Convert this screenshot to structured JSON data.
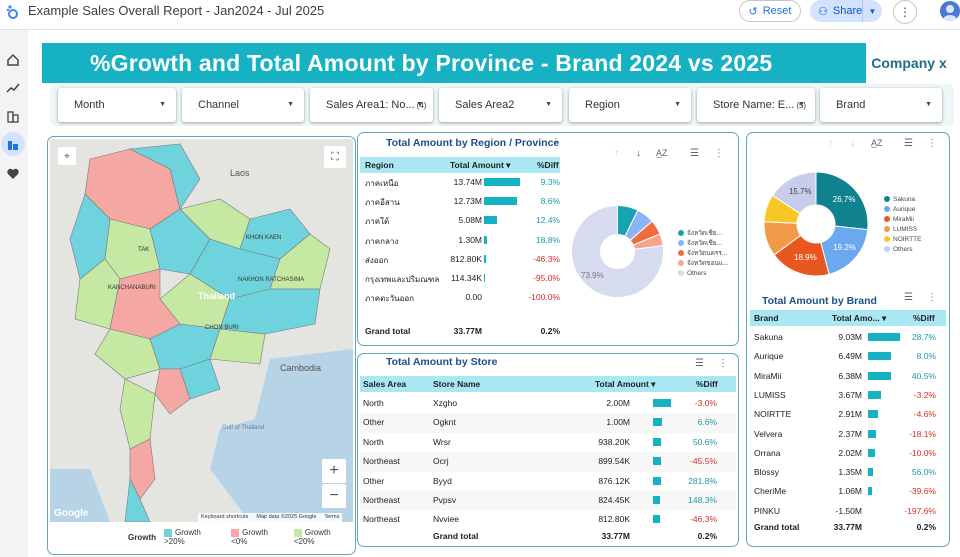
{
  "app": {
    "title": "Example Sales Overall Report - Jan2024 - Jul 2025",
    "reset_label": "Reset",
    "share_label": "Share"
  },
  "banner": {
    "title": "%Growth and Total Amount by Province - Brand 2024 vs 2025",
    "company": "Company x"
  },
  "filters": [
    {
      "label": "Month"
    },
    {
      "label": "Channel"
    },
    {
      "label": "Sales Area1: No...",
      "count": "(4)"
    },
    {
      "label": "Sales Area2"
    },
    {
      "label": "Region"
    },
    {
      "label": "Store Name: E...",
      "count": "(5)"
    },
    {
      "label": "Brand"
    }
  ],
  "map": {
    "labels": [
      "Laos",
      "Thailand",
      "Cambodia",
      "KANCHANABURI",
      "CHON BURI",
      "TAK",
      "KHON KAEN",
      "NAKHON RATCHASIMA",
      "Gulf of Thailand"
    ],
    "attribution": [
      "Keyboard shortcuts",
      "Map data ©2025 Google",
      "Terms"
    ],
    "google": "Google",
    "legend": {
      "title": "Growth",
      "items": [
        {
          "label": "Growth >20%",
          "color": "#6fd3dd"
        },
        {
          "label": "Growth <0%",
          "color": "#f4a7a3"
        },
        {
          "label": "Growth <20%",
          "color": "#c5e8a3"
        }
      ]
    },
    "zoom_in": "+",
    "zoom_out": "−"
  },
  "region_table": {
    "title": "Total Amount by Region / Province",
    "headers": [
      "Region",
      "Total Amount ▾",
      "%Diff"
    ],
    "rows": [
      {
        "name": "ภาคเหนือ",
        "amount": "13.74M",
        "bar": 1.0,
        "diff": "9.3%",
        "neg": false
      },
      {
        "name": "ภาคอีสาน",
        "amount": "12.73M",
        "bar": 0.93,
        "diff": "8.6%",
        "neg": false
      },
      {
        "name": "ภาคใต้",
        "amount": "5.08M",
        "bar": 0.37,
        "diff": "12.4%",
        "neg": false
      },
      {
        "name": "ภาคกลาง",
        "amount": "1.30M",
        "bar": 0.095,
        "diff": "18.8%",
        "neg": false
      },
      {
        "name": "ส่งออก",
        "amount": "812.80K",
        "bar": 0.06,
        "diff": "-46.3%",
        "neg": true
      },
      {
        "name": "กรุงเทพและปริมณฑล",
        "amount": "114.34K",
        "bar": 0.01,
        "diff": "-95.0%",
        "neg": true
      },
      {
        "name": "ภาคตะวันออก",
        "amount": "0.00",
        "bar": 0.0,
        "diff": "-100.0%",
        "neg": true
      }
    ],
    "total": {
      "label": "Grand total",
      "amount": "33.77M",
      "diff": "0.2%"
    }
  },
  "region_pie": {
    "center_label": "73.9%",
    "slices": [
      {
        "label": "จังหวัดเชีย...",
        "value": 7.0,
        "color": "#16a2b0"
      },
      {
        "label": "จังหวัดเชีย...",
        "value": 6.0,
        "color": "#8ab4f8"
      },
      {
        "label": "จังหวัดนครร...",
        "value": 5.0,
        "color": "#f26b3a"
      },
      {
        "label": "จังหวัดขอนแ...",
        "value": 4.0,
        "color": "#f4a58a"
      },
      {
        "label": "Others",
        "value": 73.9,
        "color": "#d6dbf0"
      }
    ]
  },
  "brand_pie": {
    "slices": [
      {
        "label": "Sakuna",
        "value": 26.7,
        "color": "#10828f",
        "show": "26.7%"
      },
      {
        "label": "Aurique",
        "value": 19.2,
        "color": "#6aa8f0",
        "show": "19.2%"
      },
      {
        "label": "MiraMii",
        "value": 18.9,
        "color": "#e8571f",
        "show": "18.9%"
      },
      {
        "label": "LUMISS",
        "value": 10.8,
        "color": "#f29a4a",
        "show": ""
      },
      {
        "label": "NOIRTTE",
        "value": 8.6,
        "color": "#f7c726",
        "show": ""
      },
      {
        "label": "Others",
        "value": 15.7,
        "color": "#c7cdeb",
        "show": "15.7%"
      }
    ]
  },
  "brand_table": {
    "title": "Total Amount by Brand",
    "headers": [
      "Brand",
      "Total Amo... ▾",
      "%Diff"
    ],
    "rows": [
      {
        "name": "Sakuna",
        "amount": "9.03M",
        "bar": 1.0,
        "diff": "28.7%",
        "neg": false
      },
      {
        "name": "Aurique",
        "amount": "6.49M",
        "bar": 0.72,
        "diff": "8.0%",
        "neg": false
      },
      {
        "name": "MiraMii",
        "amount": "6.38M",
        "bar": 0.71,
        "diff": "40.5%",
        "neg": false
      },
      {
        "name": "LUMISS",
        "amount": "3.67M",
        "bar": 0.41,
        "diff": "-3.2%",
        "neg": true
      },
      {
        "name": "NOIRTTE",
        "amount": "2.91M",
        "bar": 0.32,
        "diff": "-4.6%",
        "neg": true
      },
      {
        "name": "Velvera",
        "amount": "2.37M",
        "bar": 0.26,
        "diff": "-18.1%",
        "neg": true
      },
      {
        "name": "Orrana",
        "amount": "2.02M",
        "bar": 0.22,
        "diff": "-10.0%",
        "neg": true
      },
      {
        "name": "Blossy",
        "amount": "1.35M",
        "bar": 0.15,
        "diff": "56.0%",
        "neg": false
      },
      {
        "name": "CheriMe",
        "amount": "1.06M",
        "bar": 0.12,
        "diff": "-39.6%",
        "neg": true
      },
      {
        "name": "PINKU",
        "amount": "-1.50M",
        "bar": 0.0,
        "diff": "-197.6%",
        "neg": true
      }
    ],
    "total": {
      "label": "Grand total",
      "amount": "33.77M",
      "diff": "0.2%"
    }
  },
  "store_table": {
    "title": "Total Amount by Store",
    "headers": [
      "Sales Area",
      "Store Name",
      "Total Amount ▾",
      "%Diff"
    ],
    "rows": [
      {
        "area": "North",
        "store": "Xzgho",
        "amount": "2.00M",
        "bar": 1.0,
        "diff": "-3.0%",
        "neg": true
      },
      {
        "area": "Other",
        "store": "Ogknt",
        "amount": "1.00M",
        "bar": 0.5,
        "diff": "6.6%",
        "neg": false
      },
      {
        "area": "North",
        "store": "Wrsr",
        "amount": "938.20K",
        "bar": 0.47,
        "diff": "50.6%",
        "neg": false
      },
      {
        "area": "Northeast",
        "store": "Ocrj",
        "amount": "899.54K",
        "bar": 0.45,
        "diff": "-45.5%",
        "neg": true
      },
      {
        "area": "Other",
        "store": "Byyd",
        "amount": "876.12K",
        "bar": 0.44,
        "diff": "281.8%",
        "neg": false
      },
      {
        "area": "Northeast",
        "store": "Pvpsv",
        "amount": "824.45K",
        "bar": 0.41,
        "diff": "148.3%",
        "neg": false
      },
      {
        "area": "Northeast",
        "store": "Nvviee",
        "amount": "812.80K",
        "bar": 0.41,
        "diff": "-46.3%",
        "neg": true
      }
    ],
    "total": {
      "label": "Grand total",
      "amount": "33.77M",
      "diff": "0.2%"
    }
  },
  "colors": {
    "accent": "#16b2c4",
    "header": "#a9e8f2",
    "positive": "#1a9aa8",
    "negative": "#d93025"
  }
}
